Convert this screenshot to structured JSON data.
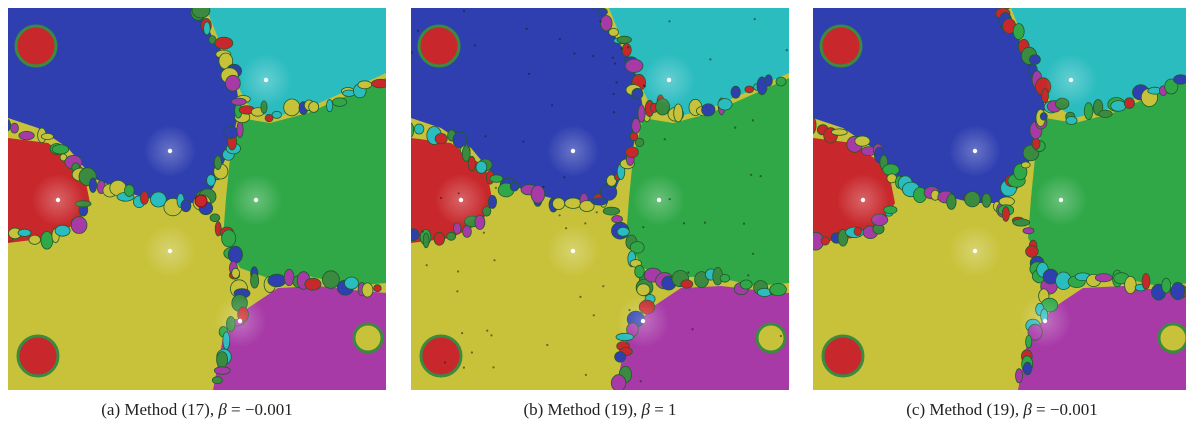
{
  "figure": {
    "panels": [
      {
        "id": "a",
        "caption_prefix": "(a)  Method (17), ",
        "caption_symbol": "β",
        "caption_suffix": " = −0.001",
        "has_noise_specks": false,
        "red_root_marker": true
      },
      {
        "id": "b",
        "caption_prefix": "(b)  Method (19), ",
        "caption_symbol": "β",
        "caption_suffix": " = 1",
        "has_noise_specks": true,
        "red_root_marker": false
      },
      {
        "id": "c",
        "caption_prefix": "(c)  Method (19), ",
        "caption_symbol": "β",
        "caption_suffix": " = −0.001",
        "has_noise_specks": false,
        "red_root_marker": false
      }
    ],
    "basin_colors": {
      "blue": "#2f3fb0",
      "cyan": "#2bbcc0",
      "green": "#30a848",
      "red": "#c8282c",
      "yellow": "#c8c23a",
      "magenta": "#a83aa8",
      "boundary": "#3a8a40"
    },
    "root_marker_color": "#ffffff"
  }
}
